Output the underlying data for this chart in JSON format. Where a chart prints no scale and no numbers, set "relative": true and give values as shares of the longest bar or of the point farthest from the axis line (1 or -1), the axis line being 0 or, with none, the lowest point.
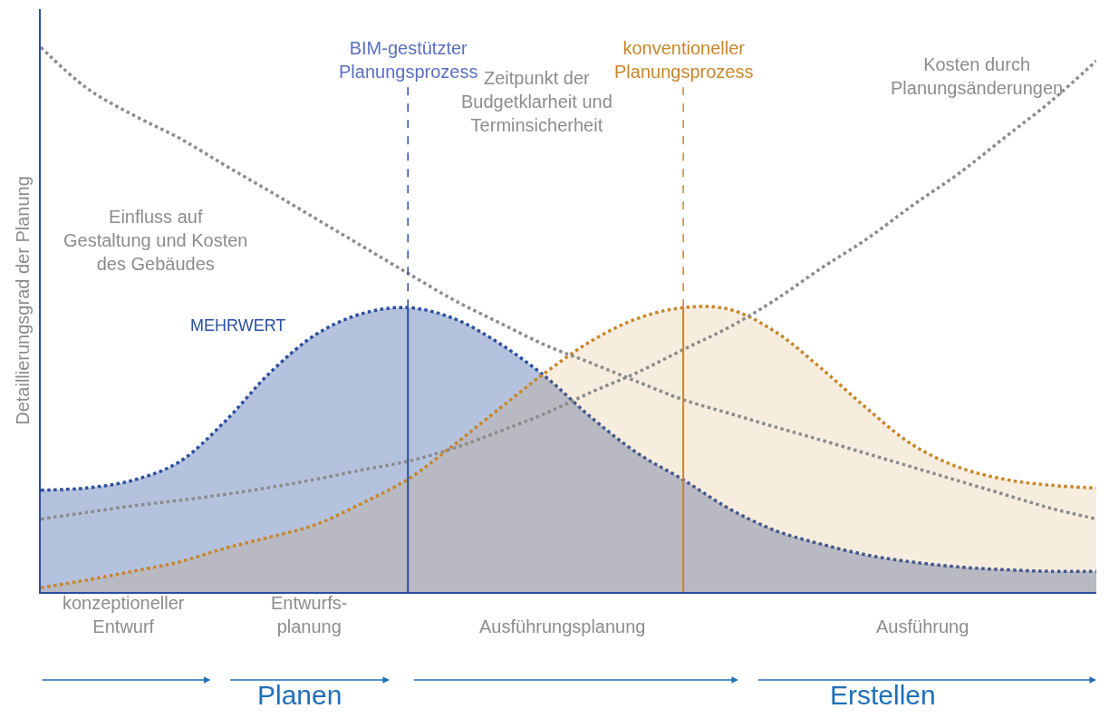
{
  "chart_data": {
    "type": "area",
    "relative": true,
    "ylabel": "Detaillierungsgrad der Planung",
    "categories": [
      null,
      null,
      null,
      null,
      null,
      null,
      null,
      null,
      null,
      null,
      null,
      null,
      null,
      null,
      null,
      null,
      null,
      null,
      null,
      null,
      null,
      null,
      null,
      null
    ],
    "series": [
      {
        "name": "BIM-gestützter\nPlanungsprozess",
        "color": "#2a4f9e",
        "values": [
          0.187,
          0.191,
          0.205,
          0.238,
          0.312,
          0.403,
          0.473,
          0.511,
          0.522,
          0.502,
          0.456,
          0.395,
          0.32,
          0.255,
          0.206,
          0.153,
          0.113,
          0.088,
          0.068,
          0.055,
          0.046,
          0.041,
          0.038,
          0.038
        ]
      },
      {
        "name": "konventioneller\nPlanungsprozess",
        "color": "#c8862a",
        "values": [
          0.008,
          0.022,
          0.038,
          0.055,
          0.08,
          0.101,
          0.124,
          0.163,
          0.207,
          0.27,
          0.337,
          0.403,
          0.461,
          0.502,
          0.522,
          0.519,
          0.478,
          0.411,
          0.337,
          0.27,
          0.229,
          0.207,
          0.196,
          0.191
        ]
      },
      {
        "type": "line",
        "name": "Einfluss auf\nGestaltung und Kosten\ndes Gebäudes",
        "color": "#8c8c8c",
        "values": [
          1.0,
          0.925,
          0.876,
          0.834,
          0.784,
          0.735,
          0.685,
          0.635,
          0.585,
          0.536,
          0.494,
          0.453,
          0.42,
          0.386,
          0.353,
          0.328,
          0.303,
          0.279,
          0.254,
          0.229,
          0.204,
          0.179,
          0.154,
          0.134
        ]
      },
      {
        "type": "line",
        "name": "Kosten durch\nPlanungsänderungen",
        "color": "#8c8c8c",
        "values": [
          0.134,
          0.146,
          0.158,
          0.168,
          0.179,
          0.192,
          0.207,
          0.224,
          0.24,
          0.264,
          0.295,
          0.328,
          0.367,
          0.403,
          0.445,
          0.486,
          0.536,
          0.594,
          0.648,
          0.71,
          0.768,
          0.834,
          0.9,
          0.975
        ]
      }
    ],
    "line_style": "dotted",
    "marker": "none",
    "legend": false,
    "annotations": [
      "MEHRWERT",
      "Zeitpunkt der\nBudgetklarheit und\nTerminsicherheit",
      "konzeptioneller\nEntwurf",
      "Entwurfs-\nplanung",
      "Ausführungsplanung",
      "Ausführung",
      "Planen",
      "Erstellen"
    ]
  }
}
